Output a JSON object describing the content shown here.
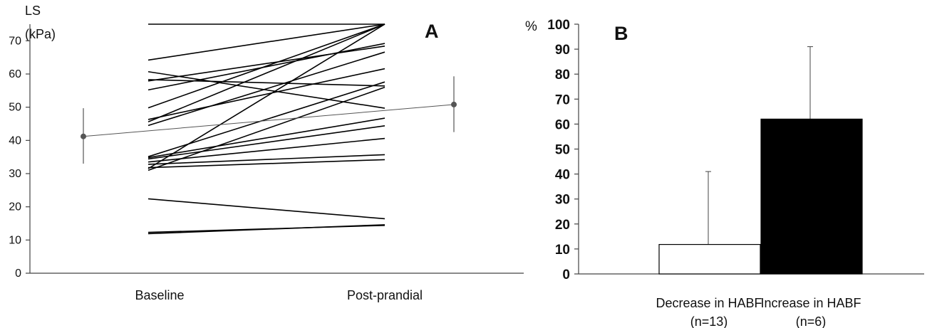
{
  "chart_data": [
    {
      "type": "line",
      "panel_label": "A",
      "ylabel_line1": "LS",
      "ylabel_line2": "(kPa)",
      "categories": [
        "Baseline",
        "Post-prandial"
      ],
      "ylim": [
        0,
        75
      ],
      "yticks": [
        0,
        10,
        20,
        30,
        40,
        50,
        60,
        70
      ],
      "ytick_labels": [
        "0",
        "10",
        "20",
        "30",
        "40",
        "50",
        "60",
        "70"
      ],
      "grid": false,
      "legend": "none",
      "series": [
        {
          "values": [
            75,
            75
          ]
        },
        {
          "values": [
            64.2,
            75
          ]
        },
        {
          "values": [
            60.7,
            49.7
          ]
        },
        {
          "values": [
            58.3,
            56.4
          ]
        },
        {
          "values": [
            57.9,
            68.4
          ]
        },
        {
          "values": [
            55.2,
            69.2
          ]
        },
        {
          "values": [
            49.8,
            75
          ]
        },
        {
          "values": [
            46.3,
            61.6
          ]
        },
        {
          "values": [
            45.6,
            75
          ]
        },
        {
          "values": [
            44.5,
            66.6
          ]
        },
        {
          "values": [
            35.1,
            57.6
          ]
        },
        {
          "values": [
            34.8,
            46.7
          ]
        },
        {
          "values": [
            34.4,
            44.4
          ]
        },
        {
          "values": [
            33.5,
            40.6
          ]
        },
        {
          "values": [
            32.8,
            35.7
          ]
        },
        {
          "values": [
            31.5,
            75
          ]
        },
        {
          "values": [
            31.8,
            34.2
          ]
        },
        {
          "values": [
            31.0,
            56.0
          ]
        },
        {
          "values": [
            22.4,
            16.4
          ]
        },
        {
          "values": [
            12.3,
            14.4
          ]
        },
        {
          "values": [
            11.9,
            14.6
          ]
        }
      ],
      "mean": {
        "values": [
          41.2,
          50.8
        ],
        "error_low": [
          33.0,
          42.5
        ],
        "error_high": [
          49.7,
          59.3
        ]
      }
    },
    {
      "type": "bar",
      "panel_label": "B",
      "ylabel": "%",
      "categories_line1": [
        "Decrease in HABF",
        "Increase in HABF"
      ],
      "categories_line2": [
        "(n=13)",
        "(n=6)"
      ],
      "values": [
        11.8,
        62
      ],
      "error_high": [
        41,
        91
      ],
      "colors": [
        "#ffffff",
        "#000000"
      ],
      "ylim": [
        0,
        100
      ],
      "yticks": [
        0,
        10,
        20,
        30,
        40,
        50,
        60,
        70,
        80,
        90,
        100
      ],
      "ytick_labels": [
        "0",
        "10",
        "20",
        "30",
        "40",
        "50",
        "60",
        "70",
        "80",
        "90",
        "100"
      ],
      "grid": false,
      "legend": "none"
    }
  ]
}
